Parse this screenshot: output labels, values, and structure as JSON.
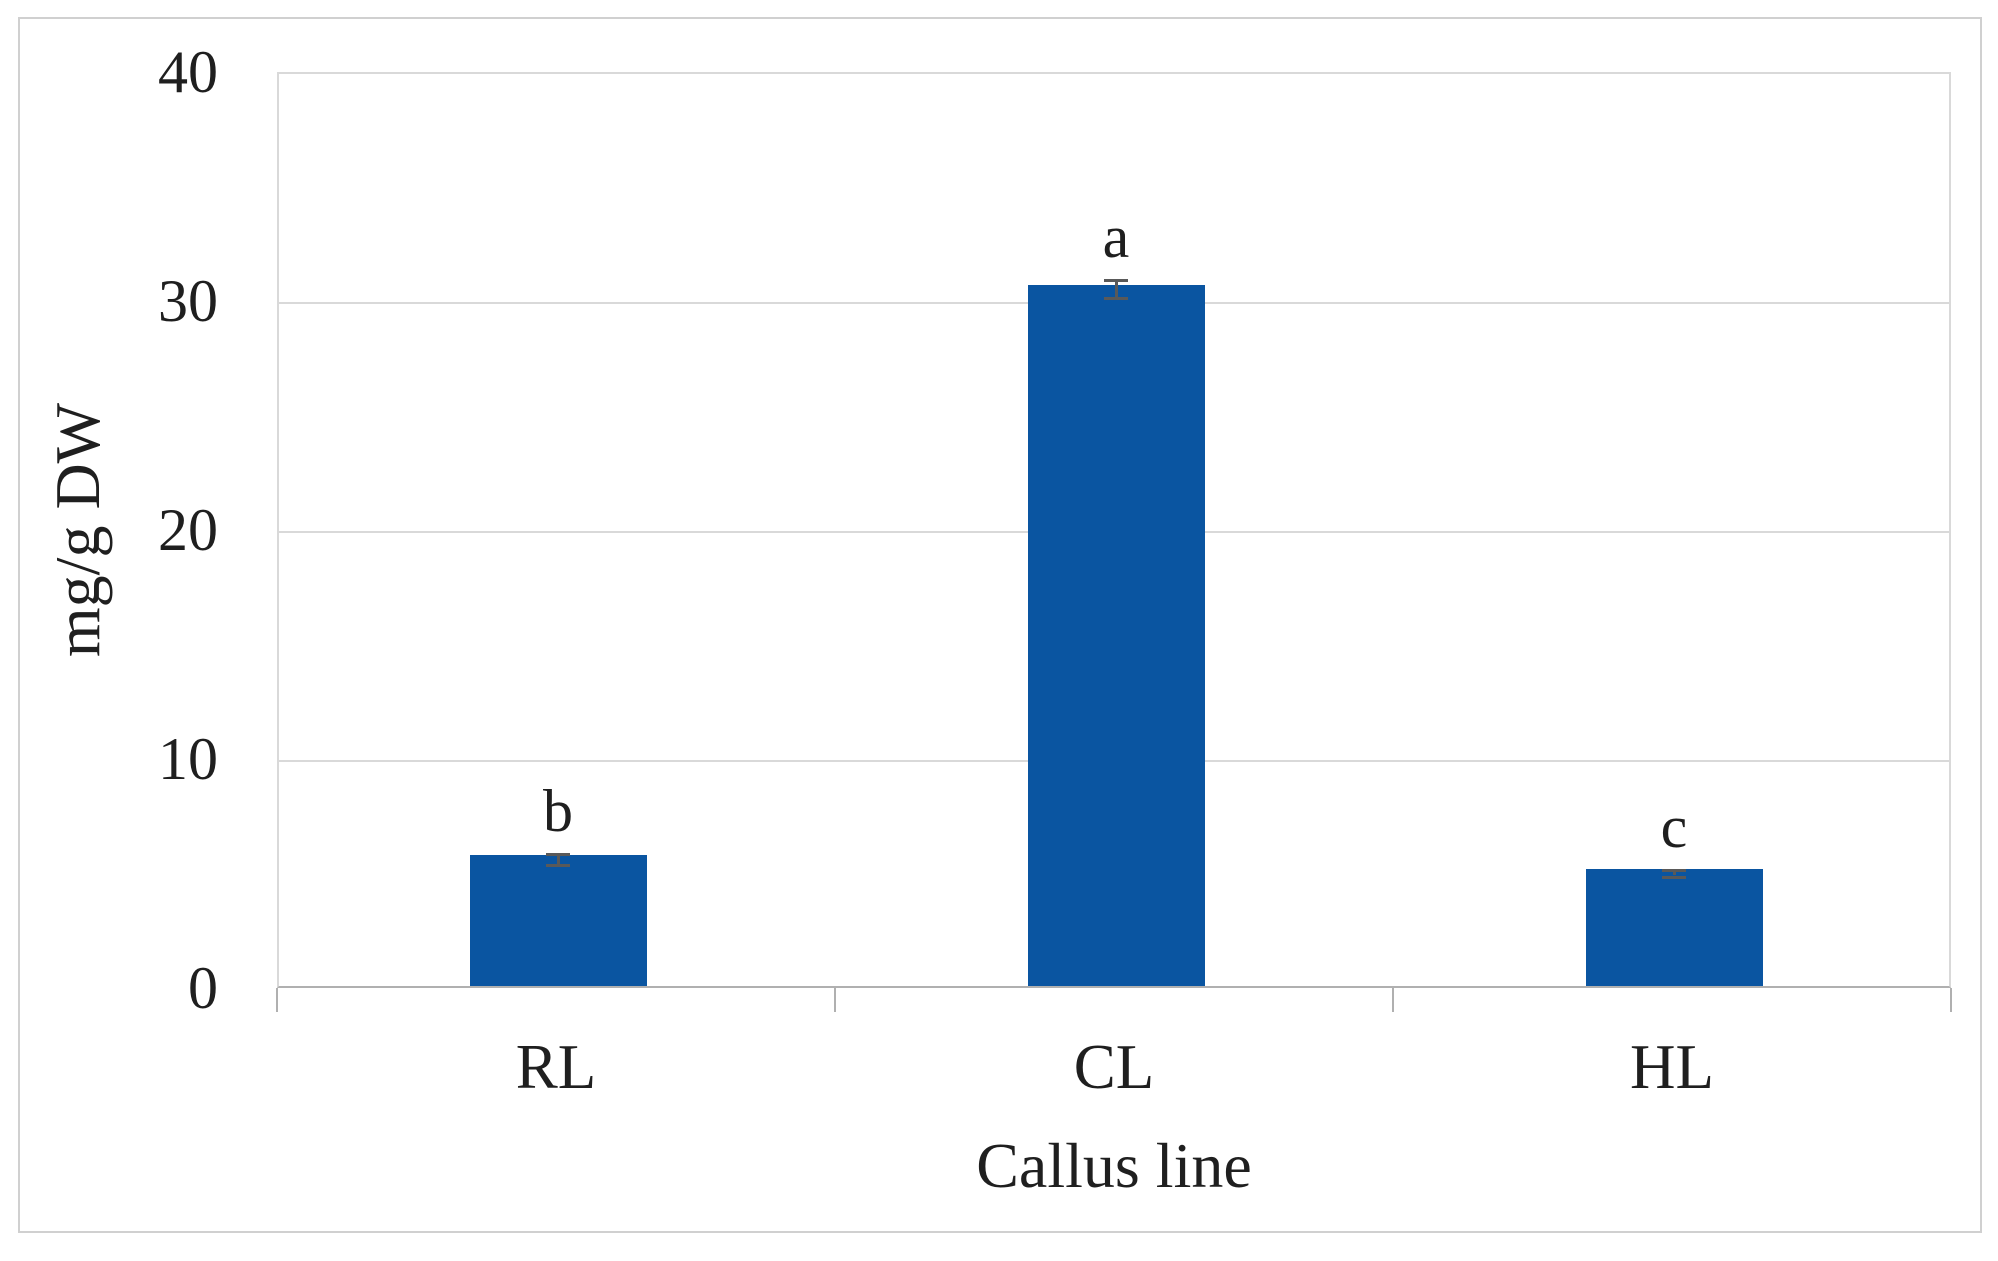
{
  "figure": {
    "background": "#ffffff",
    "frame_border_color": "#d0d0d0"
  },
  "chart_data": {
    "type": "bar",
    "title": "",
    "xlabel": "Callus line",
    "ylabel": "mg/g DW",
    "categories": [
      "RL",
      "CL",
      "HL"
    ],
    "values": [
      5.7,
      30.6,
      5.1
    ],
    "error_bars": [
      0.2,
      0.35,
      0.1
    ],
    "significance_letters": [
      "b",
      "a",
      "c"
    ],
    "ylim": [
      0,
      40
    ],
    "yticks": [
      0,
      10,
      20,
      30,
      40
    ],
    "grid": true,
    "legend": false,
    "bar_color": "#0a55a1",
    "gridline_color": "#d9d9d9",
    "axis_color": "#b0b0b0",
    "error_bar_color": "#595959",
    "text_color": "#1f1f1f"
  }
}
